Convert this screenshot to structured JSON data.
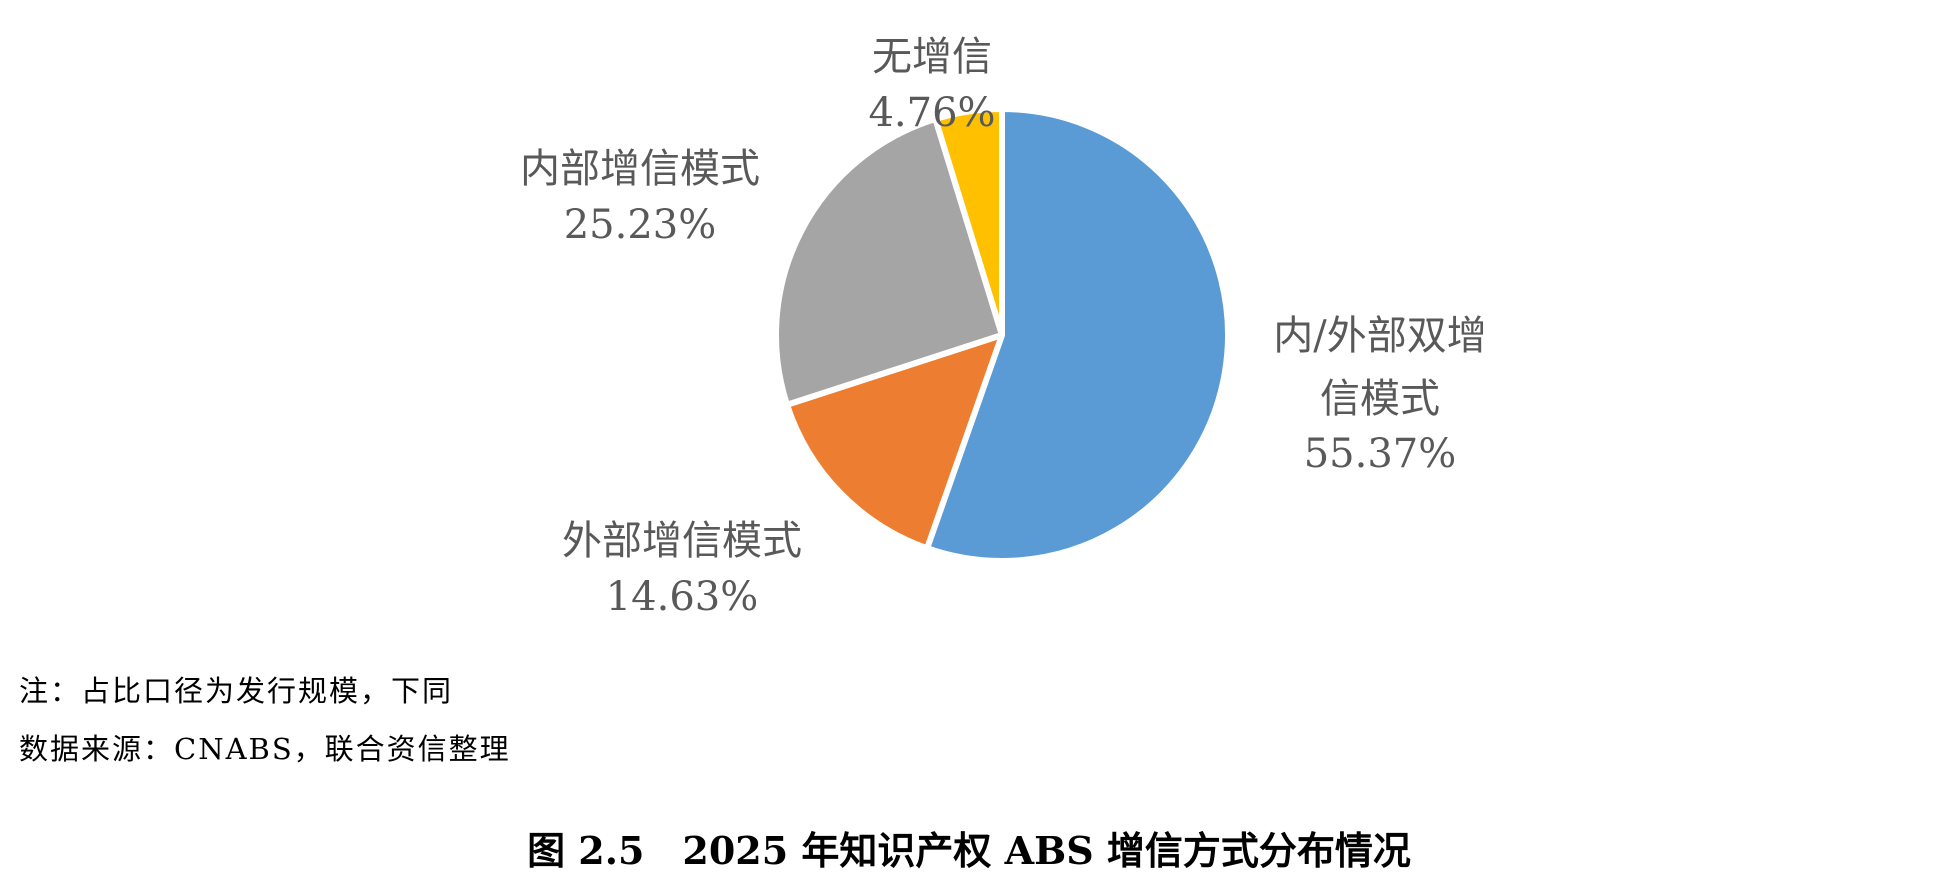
{
  "chart_data": {
    "type": "pie",
    "title": "图 2.5　2025 年知识产权 ABS 增信方式分布情况",
    "start_angle": "12 o'clock",
    "direction": "clockwise",
    "slices": [
      {
        "label": "内/外部双增信模式",
        "label_lines": [
          "内/外部双增",
          "信模式"
        ],
        "value": 55.37,
        "display": "55.37%",
        "color": "#5B9BD5"
      },
      {
        "label": "外部增信模式",
        "label_lines": [
          "外部增信模式"
        ],
        "value": 14.63,
        "display": "14.63%",
        "color": "#ED7D31"
      },
      {
        "label": "内部增信模式",
        "label_lines": [
          "内部增信模式"
        ],
        "value": 25.23,
        "display": "25.23%",
        "color": "#A5A5A5"
      },
      {
        "label": "无增信",
        "label_lines": [
          "无增信"
        ],
        "value": 4.76,
        "display": "4.76%",
        "color": "#FFC000"
      }
    ]
  },
  "notes": {
    "note": "注：占比口径为发行规模，下同",
    "source": "数据来源：CNABS，联合资信整理"
  },
  "caption": "图 2.5　2025 年知识产权 ABS 增信方式分布情况"
}
